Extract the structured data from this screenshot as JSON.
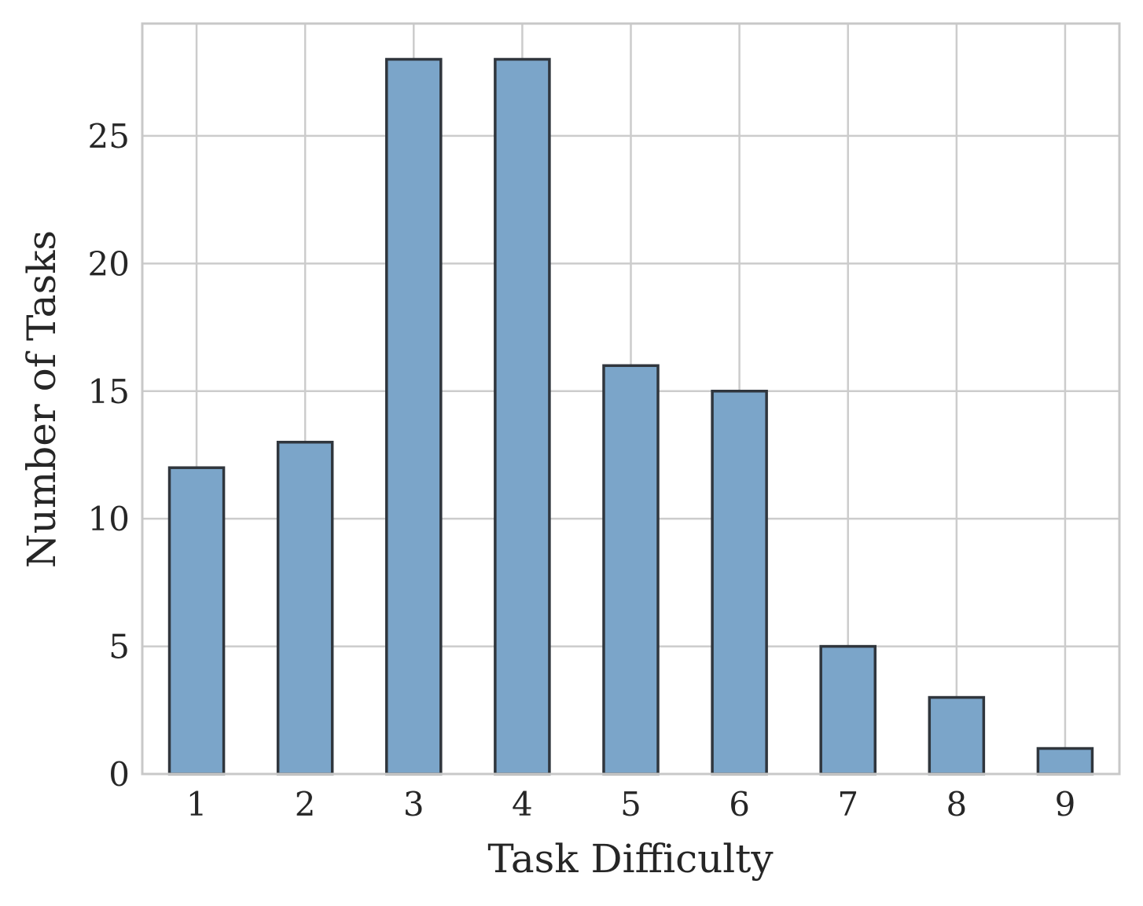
{
  "chart_data": {
    "type": "bar",
    "categories": [
      "1",
      "2",
      "3",
      "4",
      "5",
      "6",
      "7",
      "8",
      "9"
    ],
    "x": [
      1,
      2,
      3,
      4,
      5,
      6,
      7,
      8,
      9
    ],
    "values": [
      12,
      13,
      28,
      28,
      16,
      15,
      5,
      3,
      1
    ],
    "xlabel": "Task Difficulty",
    "ylabel": "Number of Tasks",
    "ylim": [
      0,
      29.4
    ],
    "xlim": [
      0.5,
      9.5
    ],
    "yticks": [
      0,
      5,
      10,
      15,
      20,
      25
    ],
    "grid": true,
    "legend": "none",
    "colors": {
      "bar_fill": "#7ba5c9",
      "bar_edge": "#30363d",
      "grid": "#cccccc"
    }
  }
}
